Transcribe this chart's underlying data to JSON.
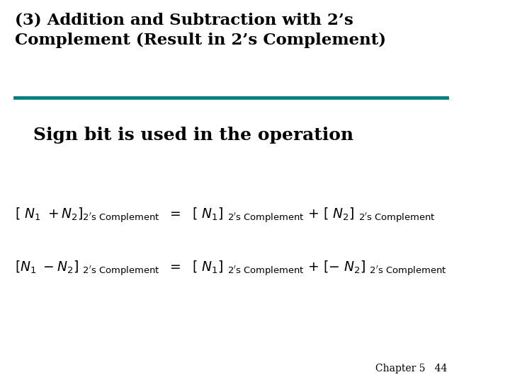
{
  "title_line1": "(3) Addition and Subtraction with 2’s",
  "title_line2": "Complement (Result in 2’s Complement)",
  "subtitle": "Sign bit is used in the operation",
  "line_color": "#008080",
  "bg_color": "#ffffff",
  "text_color": "#000000",
  "footer": "Chapter 5   44",
  "eq1_left": "[ $N_1$ +$N_2$]$_{\\mathregular{2\\'s\\ Complement}}$",
  "eq1_mid": "$=$",
  "eq1_right": "[ $N_1$] $_{\\mathregular{2\\'s\\ Complement}}$ + [ $N_2$] $_{\\mathregular{2\\'s\\ Complement}}$",
  "eq2_left": "[$N_1$ −$N_2$] $_{\\mathregular{2\\'s\\ Complement}}$",
  "eq2_mid": "$=$",
  "eq2_right": "[ $N_1$] $_{\\mathregular{2\\'s\\ Complement}}$ + [− $N_2$] $_{\\mathregular{2\\'s\\ Complement}}$"
}
